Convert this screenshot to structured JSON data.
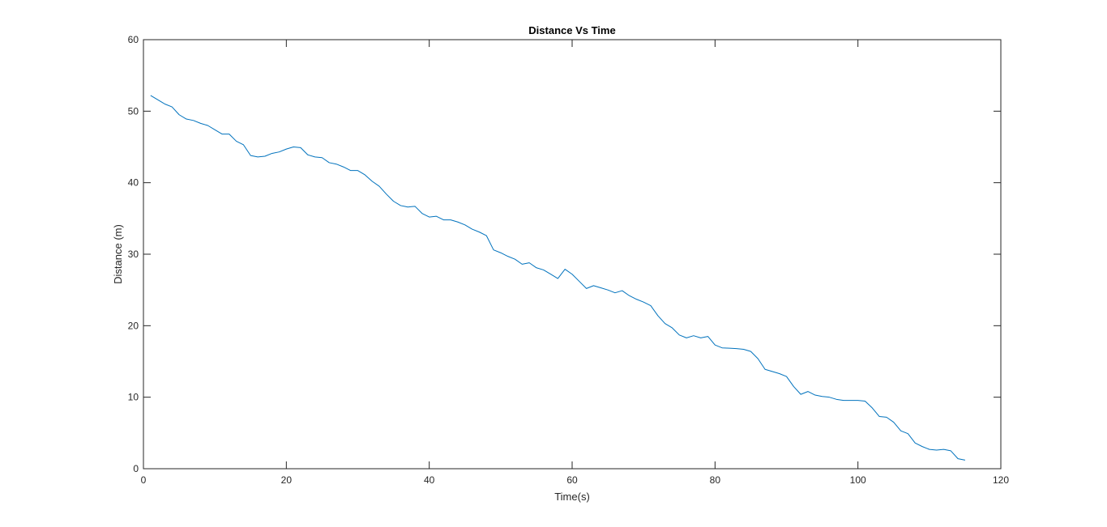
{
  "chart_data": {
    "type": "line",
    "title": "Distance Vs Time",
    "xlabel": "Time(s)",
    "ylabel": "Distance (m)",
    "xlim": [
      0,
      120
    ],
    "ylim": [
      0,
      60
    ],
    "xticks": [
      0,
      20,
      40,
      60,
      80,
      100,
      120
    ],
    "yticks": [
      0,
      10,
      20,
      30,
      40,
      50,
      60
    ],
    "grid": false,
    "box": true,
    "line_color": "#0072BD",
    "series": [
      {
        "x": [
          1,
          2,
          3,
          4,
          5,
          6,
          7,
          8,
          9,
          10,
          11,
          12,
          13,
          14,
          15,
          16,
          17,
          18,
          19,
          20,
          21,
          22,
          23,
          24,
          25,
          26,
          27,
          28,
          29,
          30,
          31,
          32,
          33,
          34,
          35,
          36,
          37,
          38,
          39,
          40,
          41,
          42,
          43,
          44,
          45,
          46,
          47,
          48,
          49,
          50,
          51,
          52,
          53,
          54,
          55,
          56,
          57,
          58,
          59,
          60,
          61,
          62,
          63,
          64,
          65,
          66,
          67,
          68,
          69,
          70,
          71,
          72,
          73,
          74,
          75,
          76,
          77,
          78,
          79,
          80,
          81,
          82,
          83,
          84,
          85,
          86,
          87,
          88,
          89,
          90,
          91,
          92,
          93,
          94,
          95,
          96,
          97,
          98,
          99,
          100,
          101,
          102,
          103,
          104,
          105,
          106,
          107,
          108,
          109,
          110,
          111,
          112,
          113,
          114,
          115
        ],
        "y": [
          52.2,
          51.6,
          51.0,
          50.6,
          49.5,
          48.9,
          48.7,
          48.3,
          48.0,
          47.4,
          46.8,
          46.8,
          45.8,
          45.3,
          43.8,
          43.6,
          43.7,
          44.1,
          44.3,
          44.7,
          45.0,
          44.9,
          43.9,
          43.6,
          43.5,
          42.8,
          42.6,
          42.2,
          41.7,
          41.7,
          41.1,
          40.2,
          39.5,
          38.4,
          37.4,
          36.8,
          36.6,
          36.7,
          35.7,
          35.2,
          35.3,
          34.8,
          34.8,
          34.5,
          34.1,
          33.5,
          33.1,
          32.6,
          30.6,
          30.2,
          29.7,
          29.3,
          28.6,
          28.8,
          28.1,
          27.8,
          27.2,
          26.6,
          27.9,
          27.2,
          26.2,
          25.2,
          25.6,
          25.3,
          25.0,
          24.6,
          24.9,
          24.2,
          23.7,
          23.3,
          22.8,
          21.4,
          20.3,
          19.7,
          18.7,
          18.3,
          18.6,
          18.3,
          18.5,
          17.3,
          16.9,
          16.85,
          16.8,
          16.7,
          16.4,
          15.4,
          13.9,
          13.6,
          13.3,
          12.9,
          11.5,
          10.4,
          10.8,
          10.3,
          10.1,
          10.0,
          9.7,
          9.55,
          9.55,
          9.55,
          9.45,
          8.5,
          7.3,
          7.2,
          6.5,
          5.3,
          4.9,
          3.6,
          3.1,
          2.7,
          2.6,
          2.7,
          2.5,
          1.4,
          1.2
        ]
      }
    ]
  }
}
